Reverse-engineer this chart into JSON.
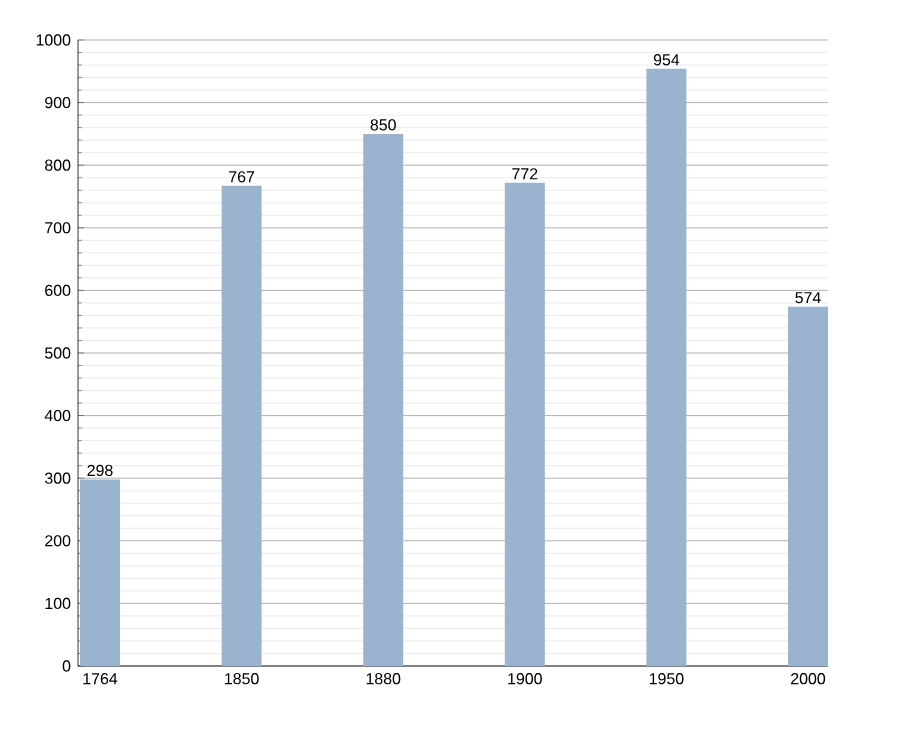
{
  "chart_data": {
    "type": "bar",
    "categories": [
      "1764",
      "1850",
      "1880",
      "1900",
      "1950",
      "2000"
    ],
    "values": [
      298,
      767,
      850,
      772,
      954,
      574
    ],
    "color": "#9ab3cf",
    "ylim": [
      0,
      1000
    ],
    "yticks": [
      0,
      100,
      200,
      300,
      400,
      500,
      600,
      700,
      800,
      900,
      1000
    ],
    "grid": "y",
    "data_labels": true
  }
}
